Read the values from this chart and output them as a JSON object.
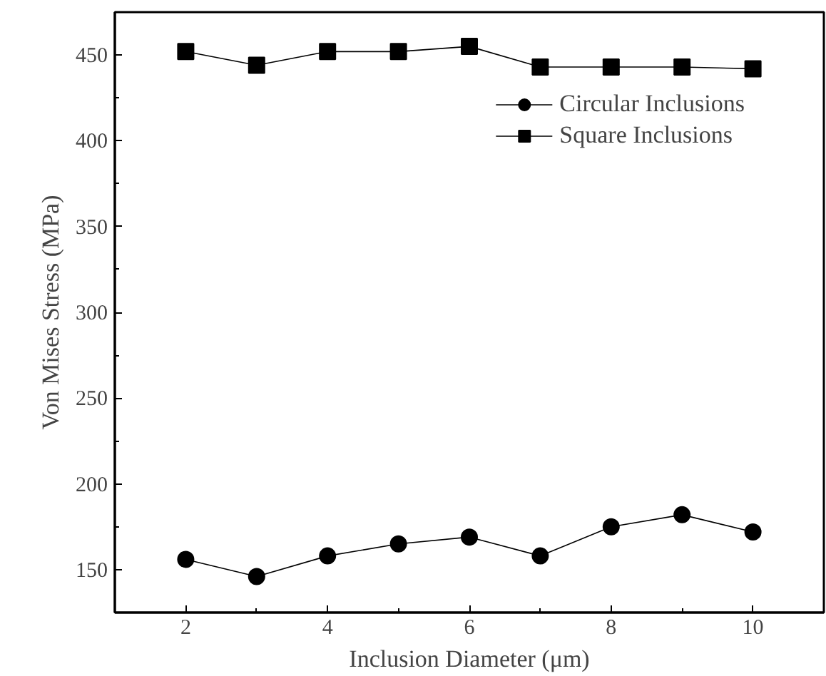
{
  "chart_data": {
    "type": "line",
    "xlabel": "Inclusion Diameter (μm)",
    "ylabel": "Von Mises Stress (MPa)",
    "x": [
      2,
      3,
      4,
      5,
      6,
      7,
      8,
      9,
      10
    ],
    "series": [
      {
        "name": "Circular Inclusions",
        "color": "#000000",
        "marker": "circle",
        "values": [
          156,
          146,
          158,
          165,
          169,
          158,
          175,
          182,
          172
        ]
      },
      {
        "name": "Square Inclusions",
        "color": "#000000",
        "marker": "square",
        "values": [
          452,
          444,
          452,
          452,
          455,
          443,
          443,
          443,
          442
        ]
      }
    ],
    "xlim": [
      1,
      11
    ],
    "ylim": [
      125,
      475
    ],
    "xticks": [
      2,
      4,
      6,
      8,
      10
    ],
    "yticks": [
      150,
      200,
      250,
      300,
      350,
      400,
      450
    ],
    "grid": false,
    "legend": "top right"
  }
}
